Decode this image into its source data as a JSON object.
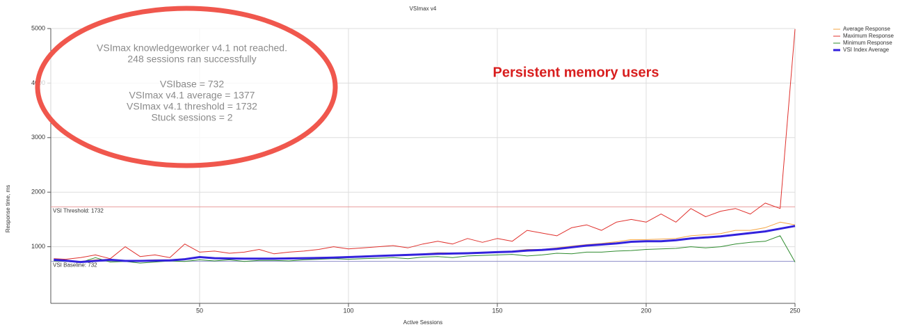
{
  "chart_data": {
    "type": "line",
    "title": "VSImax v4",
    "x_label": "Active Sessions",
    "y_label": "Response time, ms",
    "highlight": "Persistent memory users",
    "annotations": [
      "VSImax knowledgeworker v4.1 not reached.",
      "248 sessions ran successfully",
      "VSIbase = 732",
      "VSImax v4.1 average = 1377",
      "VSImax v4.1 threshold = 1732",
      "Stuck sessions = 2"
    ],
    "reference_lines": [
      {
        "label": "VSI Threshold: 1732",
        "value": 1732,
        "color": "#e89a9a"
      },
      {
        "label": "VSI Baseline: 732",
        "value": 732,
        "color": "#8c8cc8"
      }
    ],
    "xlim": [
      0,
      250
    ],
    "ylim": [
      0,
      5000
    ],
    "xticks": [
      50,
      100,
      150,
      200,
      250
    ],
    "yticks": [
      1000,
      2000,
      3000,
      4000,
      5000
    ],
    "grid": true,
    "legend": "top-right",
    "x": [
      1,
      5,
      10,
      15,
      20,
      25,
      30,
      35,
      40,
      45,
      50,
      55,
      60,
      65,
      70,
      75,
      80,
      85,
      90,
      95,
      100,
      105,
      110,
      115,
      120,
      125,
      130,
      135,
      140,
      145,
      150,
      155,
      160,
      165,
      170,
      175,
      180,
      185,
      190,
      195,
      200,
      205,
      210,
      215,
      220,
      225,
      230,
      235,
      240,
      245,
      250
    ],
    "series": [
      {
        "name": "Average Response",
        "color": "#f5a442",
        "width": 1,
        "values": [
          760,
          750,
          730,
          760,
          770,
          750,
          750,
          760,
          760,
          780,
          820,
          800,
          790,
          790,
          790,
          790,
          800,
          800,
          805,
          810,
          820,
          830,
          840,
          850,
          860,
          870,
          890,
          885,
          890,
          900,
          910,
          920,
          950,
          950,
          980,
          1010,
          1040,
          1060,
          1090,
          1130,
          1130,
          1140,
          1150,
          1200,
          1220,
          1240,
          1300,
          1300,
          1350,
          1450,
          1400
        ]
      },
      {
        "name": "Maximum Response",
        "color": "#e0302c",
        "width": 1,
        "values": [
          780,
          770,
          800,
          850,
          780,
          1000,
          820,
          850,
          800,
          1050,
          900,
          920,
          880,
          900,
          950,
          870,
          900,
          920,
          950,
          1000,
          960,
          980,
          1000,
          1020,
          980,
          1050,
          1100,
          1050,
          1150,
          1080,
          1150,
          1100,
          1300,
          1250,
          1200,
          1350,
          1400,
          1300,
          1450,
          1500,
          1450,
          1600,
          1450,
          1700,
          1550,
          1650,
          1700,
          1600,
          1800,
          1700,
          4990
        ]
      },
      {
        "name": "Minimum Response",
        "color": "#2e8b2e",
        "width": 1,
        "values": [
          740,
          730,
          710,
          800,
          720,
          730,
          700,
          720,
          740,
          730,
          760,
          740,
          760,
          730,
          750,
          750,
          740,
          760,
          770,
          780,
          770,
          780,
          790,
          800,
          780,
          810,
          820,
          800,
          830,
          840,
          850,
          860,
          830,
          850,
          880,
          870,
          900,
          900,
          920,
          930,
          950,
          960,
          970,
          1000,
          980,
          1000,
          1050,
          1080,
          1100,
          1200,
          720
        ]
      },
      {
        "name": "VSI Index Average",
        "color": "#3322dd",
        "width": 3,
        "values": [
          760,
          745,
          720,
          740,
          760,
          740,
          740,
          745,
          750,
          770,
          810,
          790,
          785,
          780,
          780,
          780,
          785,
          790,
          795,
          800,
          810,
          820,
          830,
          840,
          850,
          860,
          870,
          875,
          880,
          890,
          900,
          910,
          930,
          940,
          960,
          990,
          1020,
          1040,
          1060,
          1090,
          1100,
          1100,
          1120,
          1150,
          1170,
          1190,
          1220,
          1250,
          1280,
          1330,
          1380
        ]
      }
    ]
  }
}
